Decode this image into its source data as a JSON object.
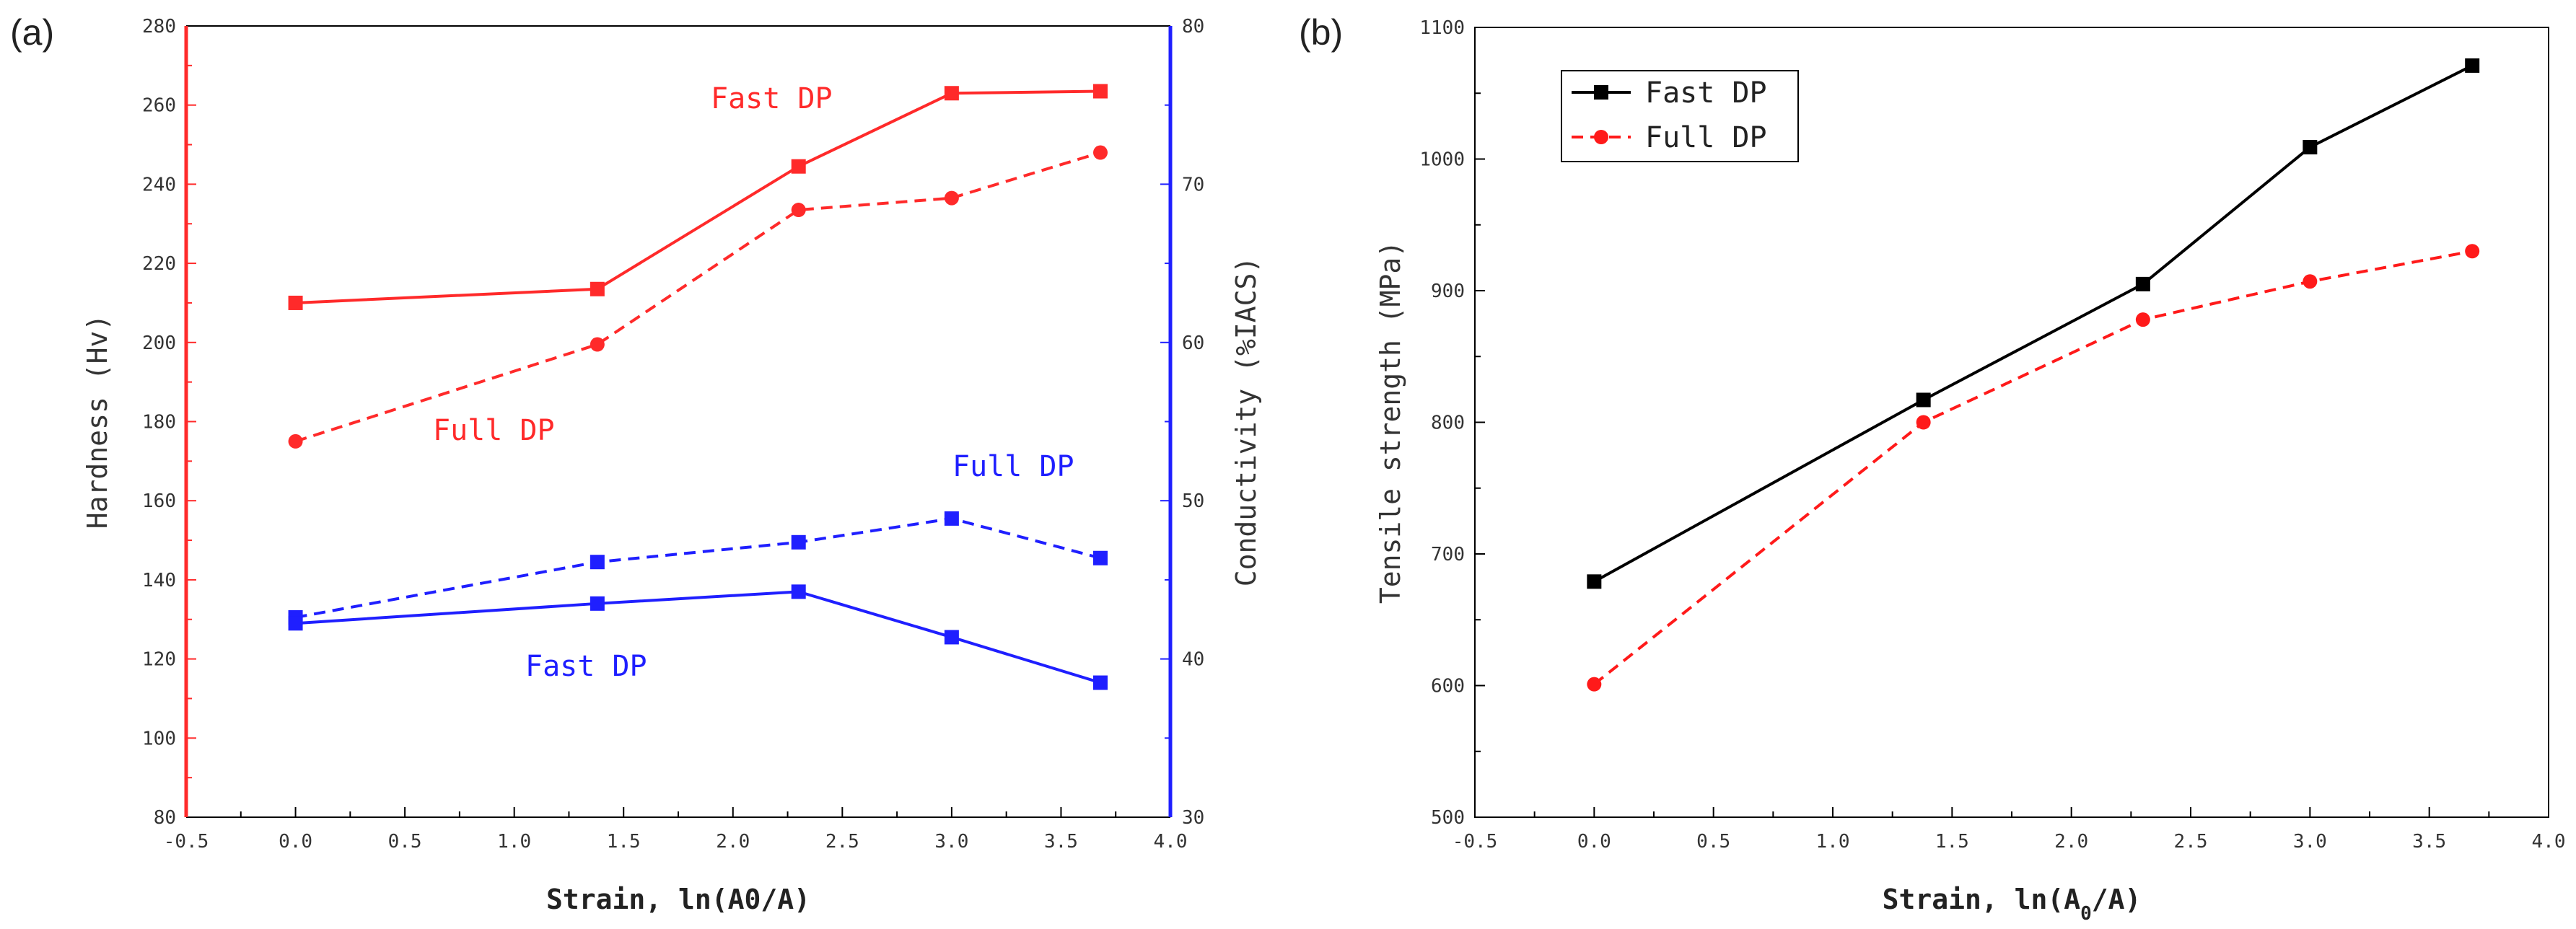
{
  "chart_data": [
    {
      "type": "line",
      "panel_label": "(a)",
      "xlabel": "Strain, ln(A0/A)",
      "ylabel_left": "Hardness (Hv)",
      "ylabel_right": "Conductivity (%IACS)",
      "xlim": [
        -0.5,
        4.0
      ],
      "ylim_left": [
        80,
        280
      ],
      "ylim_right": [
        30,
        80
      ],
      "x_ticks": [
        "-0.5",
        "0.0",
        "0.5",
        "1.0",
        "1.5",
        "2.0",
        "2.5",
        "3.0",
        "3.5",
        "4.0"
      ],
      "y_ticks_left": [
        "80",
        "100",
        "120",
        "140",
        "160",
        "180",
        "200",
        "220",
        "240",
        "260",
        "280"
      ],
      "y_ticks_right": [
        "30",
        "40",
        "50",
        "60",
        "70",
        "80"
      ],
      "x": [
        0.0,
        1.38,
        2.3,
        3.0,
        3.68
      ],
      "series": [
        {
          "name": "Fast DP",
          "axis": "left",
          "values": [
            210,
            213.5,
            244.5,
            263,
            263.5
          ],
          "color": "#ff2a2a",
          "dash": "solid",
          "marker": "square"
        },
        {
          "name": "Full DP",
          "axis": "left",
          "values": [
            175,
            199.5,
            233.5,
            236.5,
            248
          ],
          "color": "#ff2a2a",
          "dash": "dashed",
          "marker": "circle"
        },
        {
          "name": "Full DP",
          "axis": "left",
          "values": [
            130.5,
            144.5,
            149.5,
            155.5,
            145.5
          ],
          "color": "#1f1fff",
          "dash": "dashed",
          "marker": "square"
        },
        {
          "name": "Fast DP",
          "axis": "left",
          "values": [
            129,
            134,
            137,
            125.5,
            114
          ],
          "color": "#1f1fff",
          "dash": "solid",
          "marker": "square"
        }
      ],
      "annotations": [
        {
          "text": "Fast DP",
          "color": "#ff2a2a"
        },
        {
          "text": "Full DP",
          "color": "#ff2a2a"
        },
        {
          "text": "Full DP",
          "color": "#1f1fff"
        },
        {
          "text": "Fast DP",
          "color": "#1f1fff"
        }
      ],
      "left_axis_color": "#ff2a2a",
      "right_axis_color": "#1f1fff"
    },
    {
      "type": "line",
      "panel_label": "(b)",
      "xlabel_prefix": "Strain, ln(A",
      "xlabel_sub": "0",
      "xlabel_suffix": "/A)",
      "ylabel": "Tensile strength (MPa)",
      "xlim": [
        -0.5,
        4.0
      ],
      "ylim": [
        500,
        1100
      ],
      "x_ticks": [
        "-0.5",
        "0.0",
        "0.5",
        "1.0",
        "1.5",
        "2.0",
        "2.5",
        "3.0",
        "3.5",
        "4.0"
      ],
      "y_ticks": [
        "500",
        "600",
        "700",
        "800",
        "900",
        "1000",
        "1100"
      ],
      "x": [
        0.0,
        1.38,
        2.3,
        3.0,
        3.68
      ],
      "series": [
        {
          "name": "Fast DP",
          "values": [
            679,
            817,
            905,
            1009,
            1071
          ],
          "color": "#000000",
          "dash": "solid",
          "marker": "square"
        },
        {
          "name": "Full DP",
          "values": [
            601,
            800,
            878,
            907,
            930
          ],
          "color": "#ff1a1a",
          "dash": "dashed",
          "marker": "circle"
        }
      ],
      "legend": [
        "Fast DP",
        "Full DP"
      ],
      "legend_position": "top-left"
    }
  ]
}
